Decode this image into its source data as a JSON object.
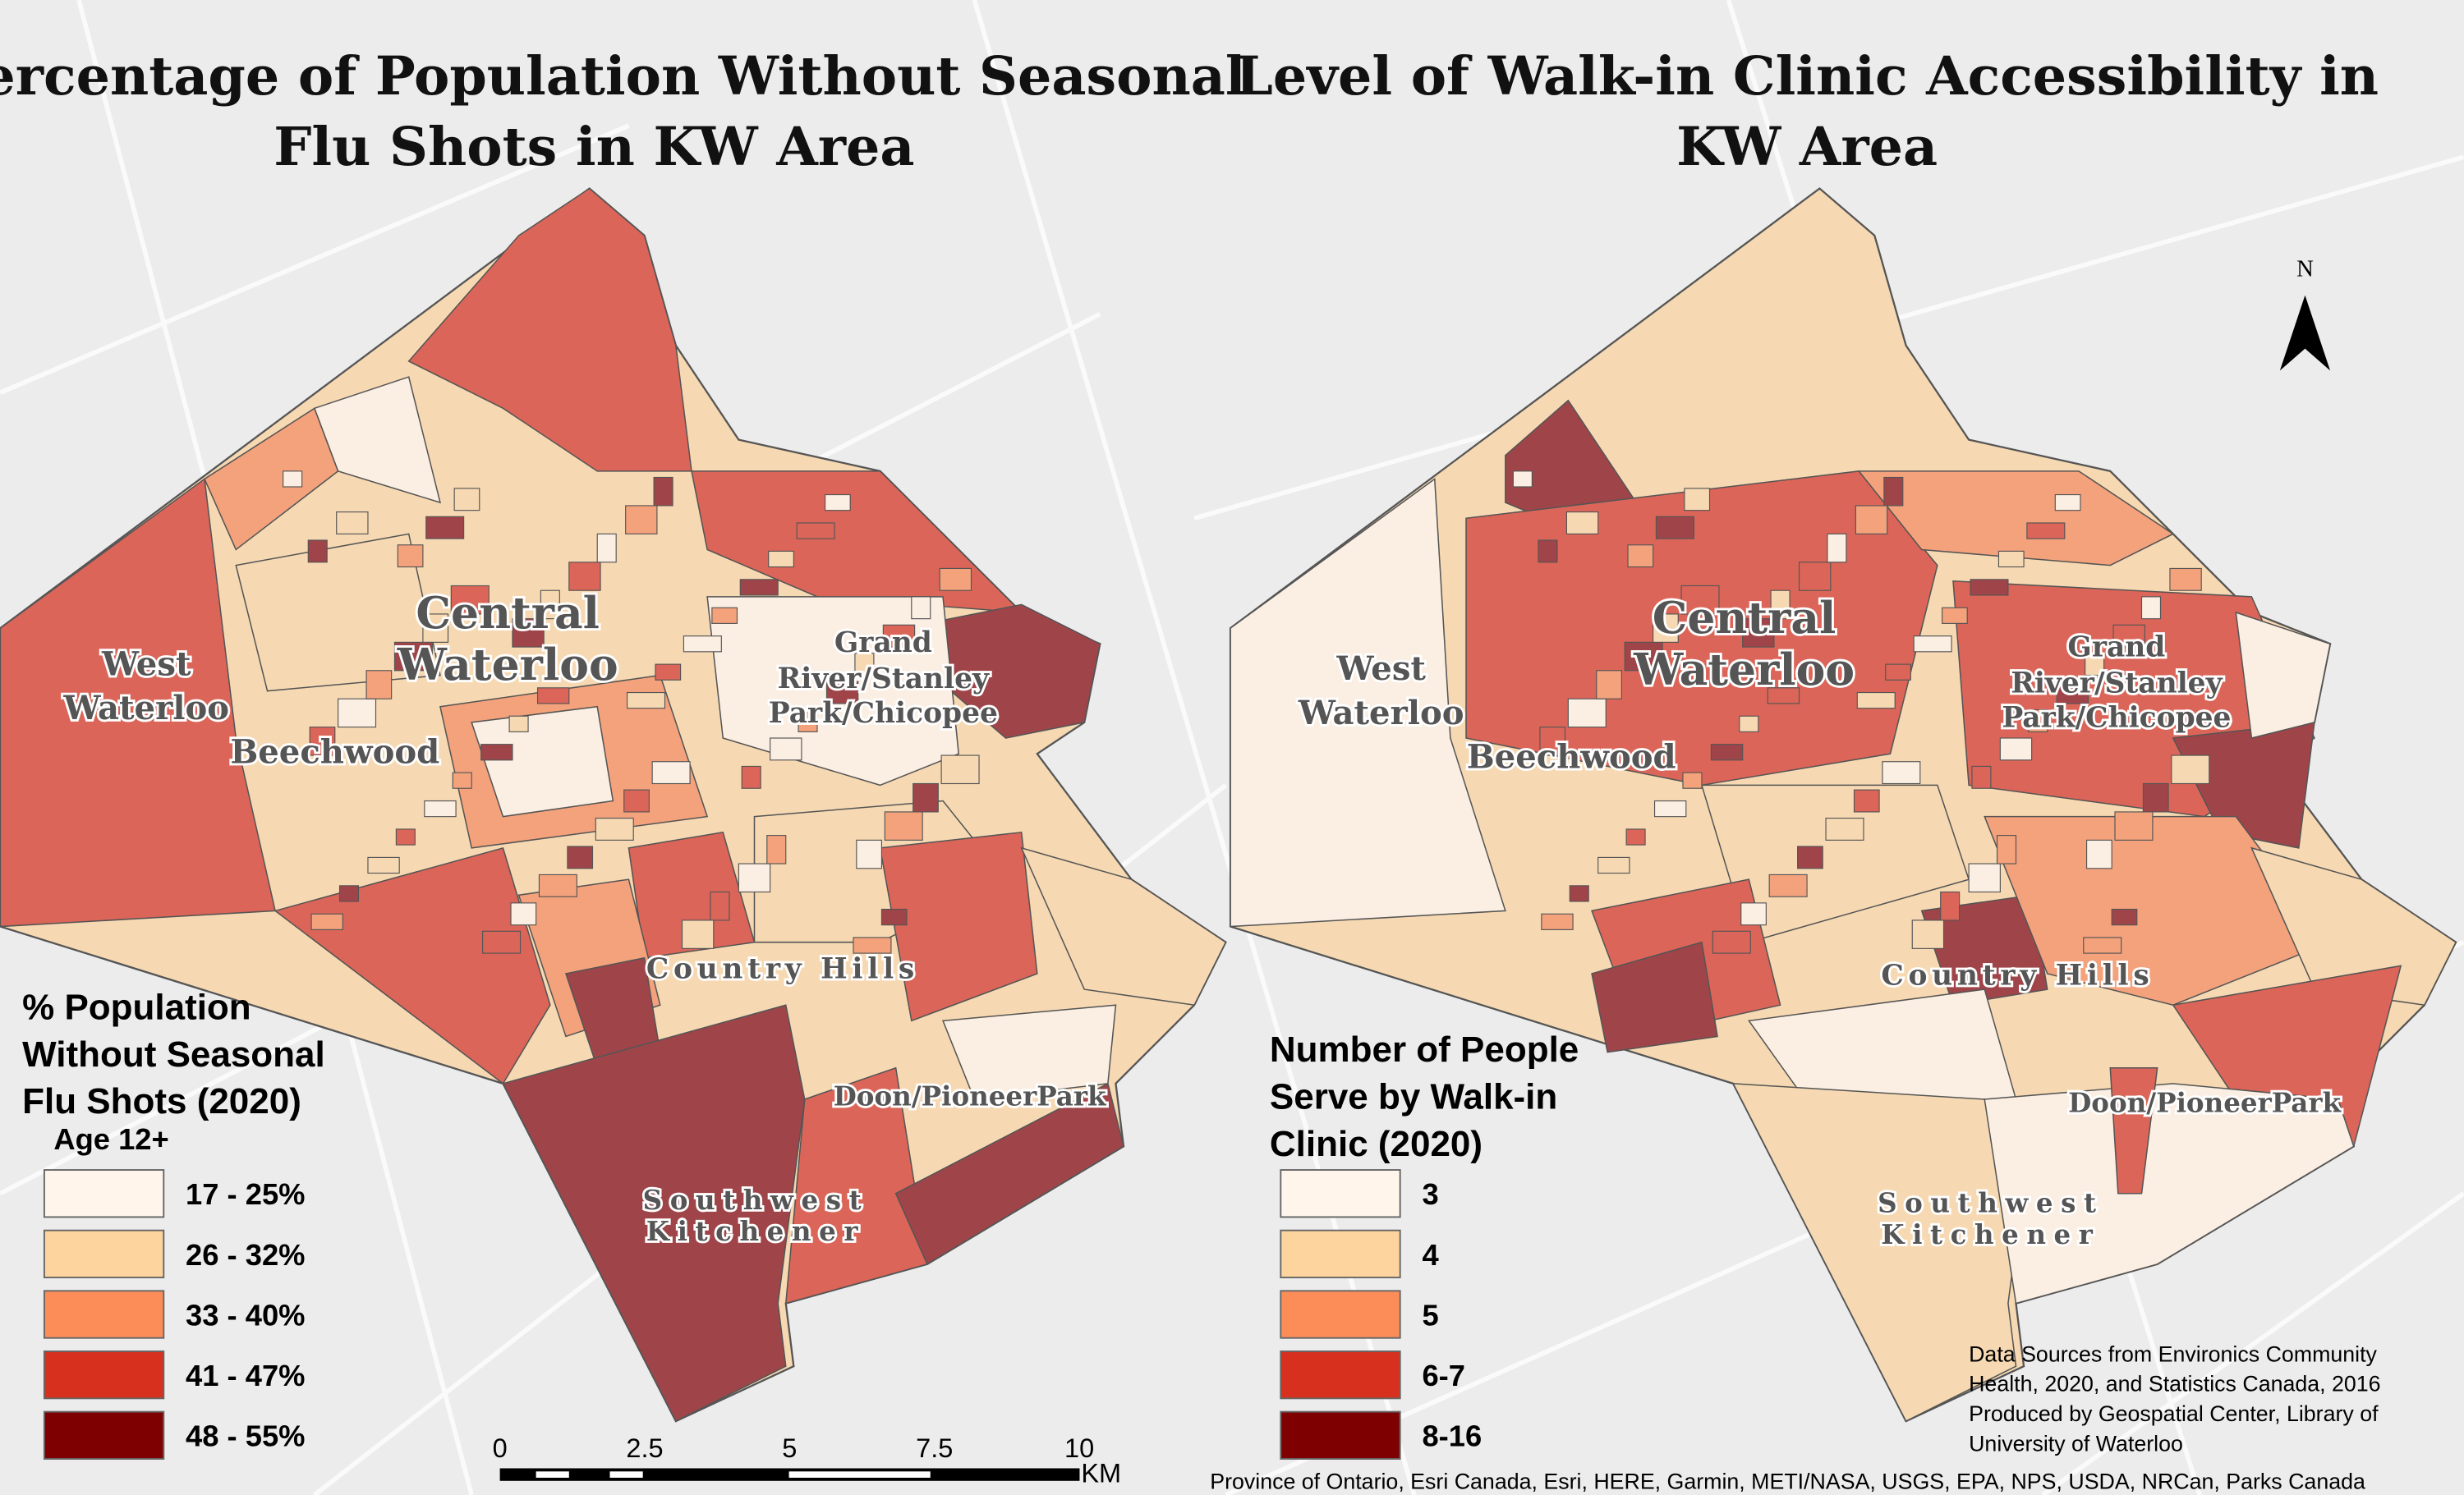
{
  "left_map": {
    "title_line1": "Percentage of Population Without Seasonal",
    "title_line2": "Flu Shots in KW Area",
    "places": {
      "central1": "Central",
      "central2": "Waterloo",
      "west1": "West",
      "west2": "Waterloo",
      "beechwood": "Beechwood",
      "grand1": "Grand",
      "grand2": "River/Stanley",
      "grand3": "Park/Chicopee",
      "country": "Country Hills",
      "doon": "Doon/PioneerPark",
      "sw1": "Southwest",
      "sw2": "Kitchener"
    },
    "legend": {
      "title_line1": "% Population",
      "title_line2": "Without Seasonal",
      "title_line3": "Flu Shots (2020)",
      "subtitle": "Age 12+",
      "classes": [
        {
          "label": "17 - 25%",
          "color": "#fff5eb"
        },
        {
          "label": "26 - 32%",
          "color": "#fdd49e"
        },
        {
          "label": "33 - 40%",
          "color": "#fc8d59"
        },
        {
          "label": "41 - 47%",
          "color": "#d7301f"
        },
        {
          "label": "48 - 55%",
          "color": "#7f0000"
        }
      ]
    },
    "scale_bar": {
      "ticks": [
        "0",
        "2.5",
        "5",
        "7.5",
        "10"
      ],
      "unit": "KM"
    }
  },
  "right_map": {
    "title_line1": "Level of Walk-in Clinic Accessibility in",
    "title_line2": "KW Area",
    "north_label": "N",
    "legend": {
      "title_line1": "Number of People",
      "title_line2": "Serve by Walk-in",
      "title_line3": "Clinic (2020)",
      "classes": [
        {
          "label": "3",
          "color": "#fff5eb"
        },
        {
          "label": "4",
          "color": "#fdd49e"
        },
        {
          "label": "5",
          "color": "#fc8d59"
        },
        {
          "label": "6-7",
          "color": "#d7301f"
        },
        {
          "label": "8-16",
          "color": "#7f0000"
        }
      ]
    },
    "credits": [
      "Data Sources from Environics Community",
      "Health, 2020, and Statistics Canada, 2016",
      "Produced by Geospatial Center, Library of",
      "University of Waterloo"
    ],
    "attribution": "Province of Ontario, Esri Canada, Esri, HERE, Garmin, METI/NASA, USGS, EPA, NPS, USDA, NRCan, Parks Canada"
  }
}
